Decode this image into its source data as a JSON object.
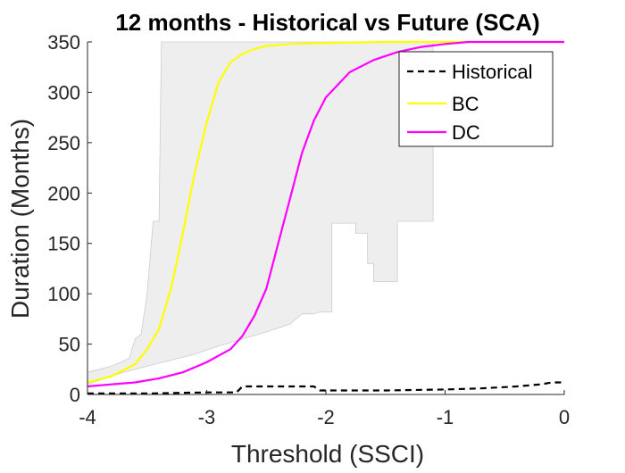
{
  "chart_data": {
    "type": "line",
    "title": "12 months - Historical vs Future (SCA)",
    "xlabel": "Threshold (SSCI)",
    "ylabel": "Duration (Months)",
    "xlim": [
      -4,
      0
    ],
    "ylim": [
      0,
      350
    ],
    "xticks": [
      -4,
      -3,
      -2,
      -1,
      0
    ],
    "yticks": [
      0,
      50,
      100,
      150,
      200,
      250,
      300,
      350
    ],
    "xtick_labels": [
      "-4",
      "-3",
      "-2",
      "-1",
      "0"
    ],
    "ytick_labels": [
      "0",
      "50",
      "100",
      "150",
      "200",
      "250",
      "300",
      "350"
    ],
    "grid": false,
    "legend_position": "top-right",
    "colors": {
      "historical": "#000000",
      "bc": "#ffff00",
      "dc": "#ff00ff",
      "band_fill": "#eeeeee",
      "band_edge": "#cccccc",
      "axis": "#262626"
    },
    "band": {
      "upper": [
        [
          -4.0,
          22
        ],
        [
          -3.9,
          25
        ],
        [
          -3.8,
          28
        ],
        [
          -3.7,
          33
        ],
        [
          -3.65,
          36
        ],
        [
          -3.6,
          55
        ],
        [
          -3.55,
          60
        ],
        [
          -3.5,
          100
        ],
        [
          -3.45,
          172
        ],
        [
          -3.4,
          172
        ],
        [
          -3.38,
          350
        ],
        [
          -1.1,
          350
        ],
        [
          -1.1,
          172
        ],
        [
          -1.4,
          172
        ],
        [
          -1.4,
          112
        ],
        [
          -1.6,
          112
        ],
        [
          -1.6,
          130
        ],
        [
          -1.65,
          130
        ],
        [
          -1.65,
          160
        ],
        [
          -1.75,
          160
        ],
        [
          -1.75,
          170
        ],
        [
          -1.95,
          170
        ],
        [
          -1.95,
          82
        ],
        [
          -2.05,
          82
        ],
        [
          -2.1,
          80
        ],
        [
          -2.2,
          80
        ],
        [
          -2.3,
          70
        ],
        [
          -2.5,
          62
        ],
        [
          -2.7,
          55
        ],
        [
          -2.9,
          48
        ],
        [
          -3.1,
          40
        ],
        [
          -3.3,
          34
        ],
        [
          -3.5,
          28
        ],
        [
          -3.7,
          22
        ],
        [
          -3.85,
          16
        ],
        [
          -4.0,
          10
        ]
      ]
    },
    "series": [
      {
        "name": "Historical",
        "style": "dashed",
        "points": [
          [
            -4.0,
            1
          ],
          [
            -3.5,
            1
          ],
          [
            -3.0,
            2
          ],
          [
            -2.8,
            2
          ],
          [
            -2.75,
            2
          ],
          [
            -2.7,
            8
          ],
          [
            -2.1,
            8
          ],
          [
            -2.05,
            4
          ],
          [
            -1.5,
            4
          ],
          [
            -1.0,
            5
          ],
          [
            -0.7,
            6
          ],
          [
            -0.4,
            8
          ],
          [
            -0.2,
            10
          ],
          [
            -0.1,
            12
          ],
          [
            0.0,
            12
          ]
        ]
      },
      {
        "name": "BC",
        "style": "solid",
        "points": [
          [
            -4.0,
            12
          ],
          [
            -3.8,
            18
          ],
          [
            -3.6,
            30
          ],
          [
            -3.5,
            45
          ],
          [
            -3.4,
            65
          ],
          [
            -3.3,
            105
          ],
          [
            -3.2,
            160
          ],
          [
            -3.1,
            220
          ],
          [
            -3.0,
            270
          ],
          [
            -2.9,
            310
          ],
          [
            -2.8,
            330
          ],
          [
            -2.7,
            338
          ],
          [
            -2.6,
            343
          ],
          [
            -2.5,
            346
          ],
          [
            -2.3,
            348
          ],
          [
            -2.0,
            349
          ],
          [
            -1.5,
            350
          ],
          [
            0.0,
            350
          ]
        ]
      },
      {
        "name": "DC",
        "style": "solid",
        "points": [
          [
            -4.0,
            8
          ],
          [
            -3.8,
            10
          ],
          [
            -3.6,
            12
          ],
          [
            -3.4,
            16
          ],
          [
            -3.2,
            22
          ],
          [
            -3.0,
            32
          ],
          [
            -2.8,
            45
          ],
          [
            -2.7,
            58
          ],
          [
            -2.6,
            78
          ],
          [
            -2.5,
            105
          ],
          [
            -2.4,
            150
          ],
          [
            -2.3,
            195
          ],
          [
            -2.2,
            240
          ],
          [
            -2.1,
            272
          ],
          [
            -2.0,
            295
          ],
          [
            -1.8,
            320
          ],
          [
            -1.6,
            332
          ],
          [
            -1.4,
            340
          ],
          [
            -1.2,
            345
          ],
          [
            -1.0,
            348
          ],
          [
            -0.8,
            350
          ],
          [
            0.0,
            350
          ]
        ]
      }
    ]
  }
}
